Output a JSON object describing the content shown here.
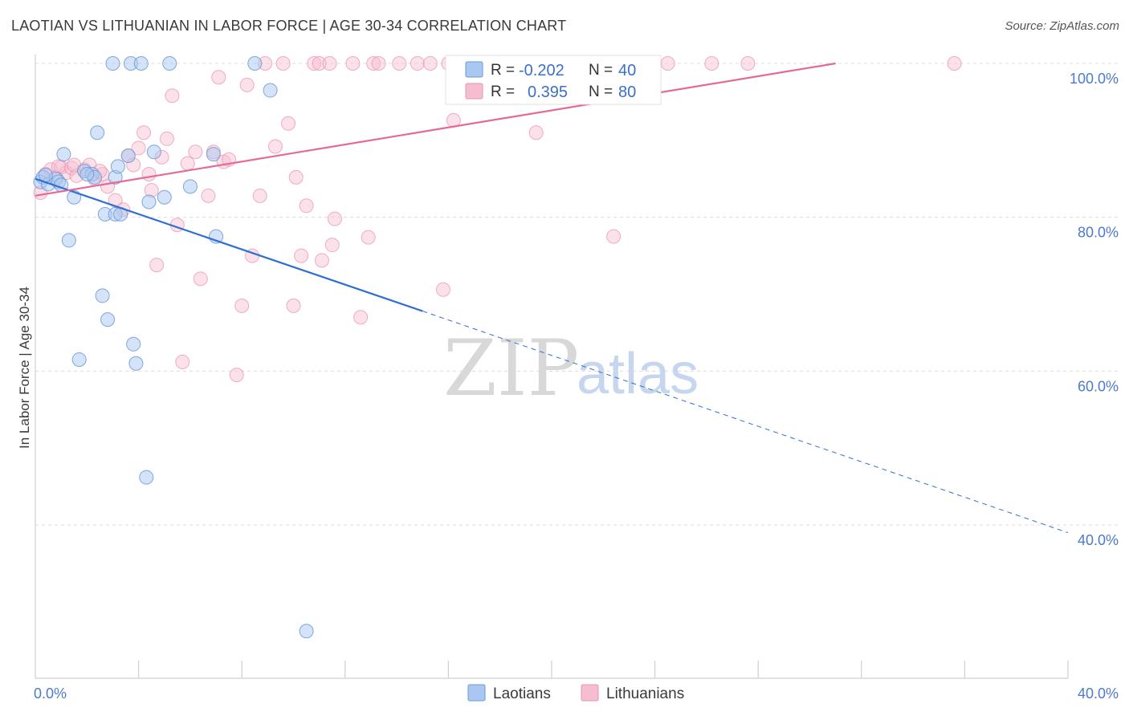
{
  "header": {
    "title": "LAOTIAN VS LITHUANIAN IN LABOR FORCE | AGE 30-34 CORRELATION CHART",
    "source": "Source: ZipAtlas.com"
  },
  "watermark": {
    "zip": "ZIP",
    "atlas": "atlas"
  },
  "colors": {
    "laotian_fill": "#a9c7f0",
    "laotian_stroke": "#6a9ad9",
    "laotian_line": "#2f6fd0",
    "lithuanian_fill": "#f6bdd0",
    "lithuanian_stroke": "#e994b2",
    "lithuanian_line": "#e46a95",
    "axis_text": "#4a7bd0"
  },
  "chart_data": {
    "type": "scatter",
    "title": "LAOTIAN VS LITHUANIAN IN LABOR FORCE | AGE 30-34 CORRELATION CHART",
    "xlabel": "",
    "ylabel": "In Labor Force | Age 30-34",
    "xlim": [
      0,
      40
    ],
    "ylim": [
      20,
      102
    ],
    "x_tick_labels": [
      {
        "value": 0,
        "label": "0.0%"
      },
      {
        "value": 40,
        "label": "40.0%"
      }
    ],
    "y_tick_labels": [
      {
        "value": 100,
        "label": "100.0%"
      },
      {
        "value": 80,
        "label": "80.0%"
      },
      {
        "value": 60,
        "label": "60.0%"
      },
      {
        "value": 40,
        "label": "40.0%"
      }
    ],
    "legend_stats": [
      {
        "series": "Laotians",
        "r_label": "R =",
        "r_value": "-0.202",
        "n_label": "N =",
        "n_value": "40"
      },
      {
        "series": "Lithuanians",
        "r_label": "R =",
        "r_value": "0.395",
        "n_label": "N =",
        "n_value": "80"
      }
    ],
    "series": [
      {
        "name": "Laotians",
        "color": "#a9c7f0",
        "trend": {
          "x": [
            0,
            15
          ],
          "y": [
            85.0,
            67.8
          ],
          "dashed_to": {
            "x": 40,
            "y": 39.0
          }
        },
        "points": [
          [
            0.2,
            84.6
          ],
          [
            0.3,
            85.2
          ],
          [
            0.5,
            84.3
          ],
          [
            0.8,
            85.0
          ],
          [
            0.9,
            84.6
          ],
          [
            1.1,
            88.2
          ],
          [
            1.3,
            77.0
          ],
          [
            1.5,
            82.6
          ],
          [
            1.7,
            61.5
          ],
          [
            1.9,
            86.0
          ],
          [
            2.2,
            85.6
          ],
          [
            2.3,
            85.2
          ],
          [
            2.4,
            91.0
          ],
          [
            2.6,
            69.8
          ],
          [
            2.8,
            66.7
          ],
          [
            2.7,
            80.4
          ],
          [
            3.1,
            85.2
          ],
          [
            3.1,
            80.4
          ],
          [
            3.2,
            86.6
          ],
          [
            3.3,
            80.4
          ],
          [
            3.6,
            88.0
          ],
          [
            3.7,
            100.0
          ],
          [
            3.8,
            63.5
          ],
          [
            3.9,
            61.0
          ],
          [
            4.1,
            100.0
          ],
          [
            4.3,
            46.2
          ],
          [
            4.4,
            82.0
          ],
          [
            4.6,
            88.5
          ],
          [
            5.0,
            82.6
          ],
          [
            5.2,
            100.0
          ],
          [
            6.0,
            84.0
          ],
          [
            6.9,
            88.2
          ],
          [
            7.0,
            77.5
          ],
          [
            8.5,
            100.0
          ],
          [
            9.1,
            96.5
          ],
          [
            10.5,
            26.2
          ],
          [
            0.4,
            85.5
          ],
          [
            1.0,
            84.2
          ],
          [
            3.0,
            100.0
          ],
          [
            2.0,
            85.6
          ]
        ]
      },
      {
        "name": "Lithuanians",
        "color": "#f6bdd0",
        "trend": {
          "x": [
            0,
            31
          ],
          "y": [
            82.8,
            100.0
          ]
        },
        "points": [
          [
            0.2,
            83.2
          ],
          [
            0.4,
            85.6
          ],
          [
            0.6,
            86.2
          ],
          [
            0.8,
            85.2
          ],
          [
            1.0,
            86.5
          ],
          [
            1.2,
            85.8
          ],
          [
            1.4,
            86.4
          ],
          [
            1.6,
            85.4
          ],
          [
            1.9,
            86.2
          ],
          [
            2.1,
            86.8
          ],
          [
            2.3,
            85.0
          ],
          [
            2.6,
            85.6
          ],
          [
            2.8,
            84.0
          ],
          [
            3.1,
            82.2
          ],
          [
            3.4,
            81.0
          ],
          [
            3.6,
            88.0
          ],
          [
            3.8,
            86.8
          ],
          [
            4.0,
            89.0
          ],
          [
            4.2,
            91.0
          ],
          [
            4.4,
            85.6
          ],
          [
            4.5,
            83.5
          ],
          [
            4.7,
            73.8
          ],
          [
            4.9,
            87.8
          ],
          [
            5.1,
            90.2
          ],
          [
            5.3,
            95.8
          ],
          [
            5.5,
            79.0
          ],
          [
            5.7,
            61.2
          ],
          [
            5.9,
            87.0
          ],
          [
            6.2,
            88.5
          ],
          [
            6.4,
            72.0
          ],
          [
            6.7,
            82.8
          ],
          [
            6.9,
            88.5
          ],
          [
            7.1,
            98.2
          ],
          [
            7.3,
            87.2
          ],
          [
            7.5,
            87.5
          ],
          [
            7.8,
            59.5
          ],
          [
            8.0,
            68.5
          ],
          [
            8.2,
            97.2
          ],
          [
            8.4,
            75.0
          ],
          [
            8.7,
            82.8
          ],
          [
            8.9,
            100.0
          ],
          [
            9.3,
            89.2
          ],
          [
            9.6,
            100.0
          ],
          [
            9.8,
            92.2
          ],
          [
            10.0,
            68.5
          ],
          [
            10.1,
            85.2
          ],
          [
            10.3,
            75.0
          ],
          [
            10.5,
            81.5
          ],
          [
            10.8,
            100.0
          ],
          [
            11.0,
            100.0
          ],
          [
            11.1,
            74.4
          ],
          [
            11.4,
            100.0
          ],
          [
            11.5,
            76.4
          ],
          [
            11.6,
            79.8
          ],
          [
            12.3,
            100.0
          ],
          [
            12.6,
            67.0
          ],
          [
            12.9,
            77.4
          ],
          [
            13.1,
            100.0
          ],
          [
            13.3,
            100.0
          ],
          [
            14.1,
            100.0
          ],
          [
            14.8,
            100.0
          ],
          [
            15.3,
            100.0
          ],
          [
            15.8,
            70.6
          ],
          [
            16.0,
            100.0
          ],
          [
            16.2,
            92.6
          ],
          [
            16.9,
            100.0
          ],
          [
            17.0,
            100.0
          ],
          [
            18.9,
            100.0
          ],
          [
            19.4,
            91.0
          ],
          [
            21.3,
            100.0
          ],
          [
            22.1,
            100.0
          ],
          [
            22.4,
            77.5
          ],
          [
            24.0,
            100.0
          ],
          [
            24.5,
            100.0
          ],
          [
            26.2,
            100.0
          ],
          [
            27.6,
            100.0
          ],
          [
            35.6,
            100.0
          ],
          [
            1.5,
            86.8
          ],
          [
            2.5,
            86.0
          ],
          [
            0.9,
            86.6
          ]
        ]
      }
    ]
  }
}
